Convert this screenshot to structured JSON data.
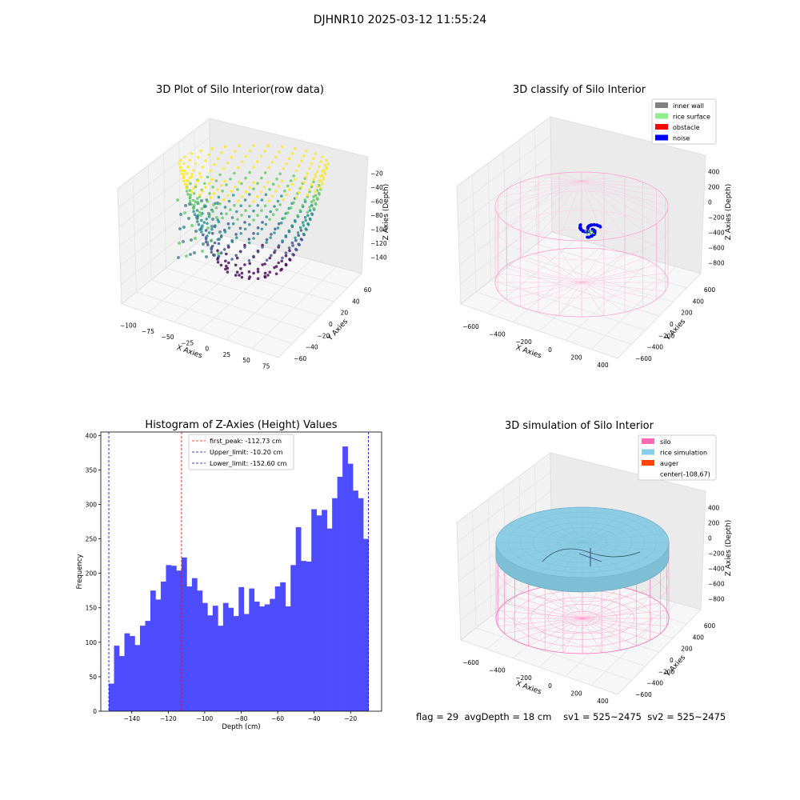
{
  "figure": {
    "suptitle": "DJHNR10 2025-03-12 11:55:24",
    "status_line": {
      "flag": "flag = 29",
      "avg_depth": "avgDepth = 18 cm",
      "sv1": "sv1 = 525~2475",
      "sv2": "sv2 = 525~2475"
    }
  },
  "chart_data": [
    {
      "type": "scatter",
      "dimension": "3d",
      "title": "3D Plot of Silo Interior(row data)",
      "xlabel": "X Axies",
      "ylabel": "Y Axies",
      "zlabel": "Z Axies (Depth)",
      "x_ticks": [
        "−100",
        "−75",
        "−50",
        "−25",
        "0",
        "25",
        "50",
        "75"
      ],
      "y_ticks": [
        "−60",
        "−40",
        "−20",
        "0",
        "20",
        "40",
        "60"
      ],
      "z_ticks": [
        "−140",
        "−120",
        "−100",
        "−80",
        "−60",
        "−40",
        "−20"
      ],
      "colormap": "viridis",
      "description_values": {
        "z_min": -152.6,
        "z_max": -10.2
      }
    },
    {
      "type": "scatter",
      "dimension": "3d",
      "title": "3D classify of Silo Interior",
      "xlabel": "X Axies",
      "ylabel": "Y Axies",
      "zlabel": "Z Axies (Depth)",
      "x_ticks": [
        "−600",
        "−400",
        "−200",
        "0",
        "200",
        "400"
      ],
      "y_ticks": [
        "−600",
        "−400",
        "−200",
        "0",
        "200",
        "400",
        "600"
      ],
      "z_ticks": [
        "−800",
        "−600",
        "−400",
        "−200",
        "0",
        "200",
        "400"
      ],
      "legend": [
        {
          "label": "inner wall",
          "color": "#808080"
        },
        {
          "label": "rice surface",
          "color": "#90ee90"
        },
        {
          "label": "obstacle",
          "color": "#ff0000"
        },
        {
          "label": "noise",
          "color": "#0000ff"
        }
      ],
      "legend_position": "top-right"
    },
    {
      "type": "bar",
      "title": "Histogram of Z-Axies (Height) Values",
      "xlabel": "Depth (cm)",
      "ylabel": "Frequency",
      "xlim": [
        -157,
        -3
      ],
      "ylim": [
        0,
        405
      ],
      "x_ticks": [
        -140,
        -120,
        -100,
        -80,
        -60,
        -40,
        -20
      ],
      "y_ticks": [
        0,
        50,
        100,
        150,
        200,
        250,
        300,
        350,
        400
      ],
      "bin_range": [
        -152.6,
        -10.2
      ],
      "bar_color": "#4d4dff",
      "values": [
        40,
        95,
        80,
        113,
        109,
        96,
        124,
        131,
        175,
        162,
        188,
        212,
        211,
        204,
        223,
        181,
        193,
        175,
        157,
        139,
        153,
        124,
        157,
        150,
        138,
        180,
        141,
        178,
        159,
        152,
        155,
        163,
        181,
        187,
        152,
        212,
        267,
        218,
        217,
        293,
        284,
        292,
        265,
        309,
        340,
        384,
        359,
        320,
        309,
        250
      ],
      "vlines": [
        {
          "label": "first_peak: -112.73 cm",
          "x": -112.73,
          "color": "#ff0000"
        },
        {
          "label": "Upper_limit: -10.20 cm",
          "x": -10.2,
          "color": "#0000cc"
        },
        {
          "label": "Lower_limit: -152.60 cm",
          "x": -152.6,
          "color": "#0000cc"
        }
      ],
      "legend_position": "top-center"
    },
    {
      "type": "scatter",
      "dimension": "3d",
      "title": "3D simulation of Silo Interior",
      "xlabel": "X Axies",
      "ylabel": "Y Axies",
      "zlabel": "Z Axies (Depth)",
      "x_ticks": [
        "−600",
        "−400",
        "−200",
        "0",
        "200",
        "400"
      ],
      "y_ticks": [
        "−600",
        "−400",
        "−200",
        "0",
        "200",
        "400",
        "600"
      ],
      "z_ticks": [
        "−800",
        "−600",
        "−400",
        "−200",
        "0",
        "200",
        "400"
      ],
      "legend": [
        {
          "label": "silo",
          "color": "#ff69b4"
        },
        {
          "label": "rice simulation",
          "color": "#87ceeb"
        },
        {
          "label": "auger",
          "color": "#ff4500"
        },
        {
          "label": "center(-108,67)",
          "color": ""
        }
      ],
      "legend_position": "top-right"
    }
  ]
}
